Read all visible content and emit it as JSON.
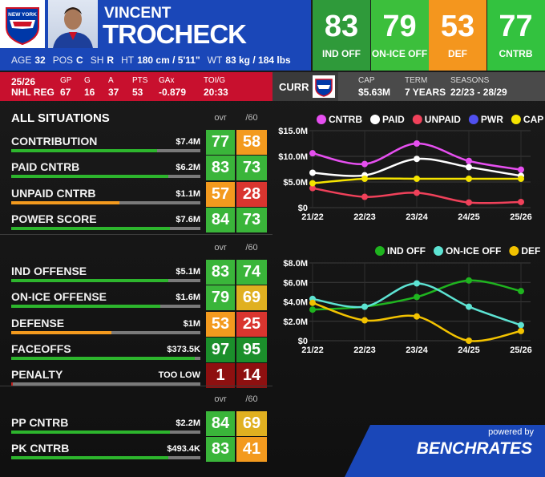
{
  "header": {
    "first_name": "VINCENT",
    "last_name": "TROCHECK",
    "team_logo_text": "NEW YORK",
    "bio": [
      {
        "label": "AGE",
        "value": "32"
      },
      {
        "label": "POS",
        "value": "C"
      },
      {
        "label": "SH",
        "value": "R"
      },
      {
        "label": "HT",
        "value": "180 cm / 5'11\""
      },
      {
        "label": "WT",
        "value": "83 kg / 184 lbs"
      }
    ],
    "ratings": [
      {
        "value": 83,
        "label": "IND OFF",
        "color": "#2f9a3a"
      },
      {
        "value": 79,
        "label": "ON-ICE OFF",
        "color": "#3cbf3c"
      },
      {
        "value": 53,
        "label": "DEF",
        "color": "#f4961e"
      },
      {
        "value": 77,
        "label": "CNTRB",
        "color": "#33c23f"
      }
    ]
  },
  "season": {
    "season": "25/26",
    "league": "NHL REG",
    "stats": [
      {
        "label": "GP",
        "value": "67"
      },
      {
        "label": "G",
        "value": "16"
      },
      {
        "label": "A",
        "value": "37"
      },
      {
        "label": "PTS",
        "value": "53"
      },
      {
        "label": "GAx",
        "value": "-0.879"
      },
      {
        "label": "TOI/G",
        "value": "20:33"
      }
    ]
  },
  "contract": {
    "title": "CURR",
    "items": [
      {
        "label": "CAP",
        "value": "$5.63M"
      },
      {
        "label": "TERM",
        "value": "7 YEARS"
      },
      {
        "label": "SEASONS",
        "value": "22/23 - 28/29"
      }
    ]
  },
  "sections": [
    {
      "title": "ALL SITUATIONS",
      "columns": [
        "ovr",
        "/60"
      ],
      "rows": [
        {
          "label": "CONTRIBUTION",
          "amount": "$7.4M",
          "ovr": 77,
          "per60": 58
        },
        {
          "label": "PAID CNTRB",
          "amount": "$6.2M",
          "ovr": 83,
          "per60": 73
        },
        {
          "label": "UNPAID CNTRB",
          "amount": "$1.1M",
          "ovr": 57,
          "per60": 28
        },
        {
          "label": "POWER SCORE",
          "amount": "$7.6M",
          "ovr": 84,
          "per60": 73
        }
      ]
    },
    {
      "columns": [
        "ovr",
        "/60"
      ],
      "rows": [
        {
          "label": "IND OFFENSE",
          "amount": "$5.1M",
          "ovr": 83,
          "per60": 74
        },
        {
          "label": "ON-ICE OFFENSE",
          "amount": "$1.6M",
          "ovr": 79,
          "per60": 69
        },
        {
          "label": "DEFENSE",
          "amount": "$1M",
          "ovr": 53,
          "per60": 25
        },
        {
          "label": "FACEOFFS",
          "amount": "$373.5K",
          "ovr": 97,
          "per60": 95
        },
        {
          "label": "PENALTY",
          "amount": "TOO LOW",
          "ovr": 1,
          "per60": 14
        }
      ]
    },
    {
      "columns": [
        "ovr",
        "/60"
      ],
      "rows": [
        {
          "label": "PP CNTRB",
          "amount": "$2.2M",
          "ovr": 84,
          "per60": 69
        },
        {
          "label": "PK CNTRB",
          "amount": "$493.4K",
          "ovr": 83,
          "per60": 41
        }
      ]
    }
  ],
  "charts": [
    {
      "type": "line",
      "categories": [
        "21/22",
        "22/23",
        "23/24",
        "24/25",
        "25/26"
      ],
      "ylim": [
        0,
        15
      ],
      "yticks": [
        {
          "value": 0,
          "label": "$0"
        },
        {
          "value": 5,
          "label": "$5.0M"
        },
        {
          "value": 10,
          "label": "$10.0M"
        },
        {
          "value": 15,
          "label": "$15.0M"
        }
      ],
      "series": [
        {
          "name": "CNTRB",
          "color": "#e64ff0",
          "values": [
            10.6,
            8.5,
            12.5,
            9.1,
            7.4
          ]
        },
        {
          "name": "PAID",
          "color": "#ffffff",
          "values": [
            6.8,
            6.3,
            9.5,
            7.9,
            6.2
          ]
        },
        {
          "name": "UNPAID",
          "color": "#f0415a",
          "values": [
            3.8,
            2.1,
            2.9,
            1.0,
            1.1
          ]
        },
        {
          "name": "PWR",
          "color": "#5050f0",
          "values": [
            null,
            null,
            null,
            null,
            null
          ]
        },
        {
          "name": "CAP",
          "color": "#f5e400",
          "values": [
            4.75,
            5.63,
            5.63,
            5.63,
            5.63
          ]
        }
      ]
    },
    {
      "type": "line",
      "categories": [
        "21/22",
        "22/23",
        "23/24",
        "24/25",
        "25/26"
      ],
      "ylim": [
        0,
        8
      ],
      "yticks": [
        {
          "value": 0,
          "label": "$0"
        },
        {
          "value": 2,
          "label": "$2.0M"
        },
        {
          "value": 4,
          "label": "$4.0M"
        },
        {
          "value": 6,
          "label": "$6.0M"
        },
        {
          "value": 8,
          "label": "$8.0M"
        }
      ],
      "series": [
        {
          "name": "IND OFF",
          "color": "#1fb41f",
          "values": [
            3.2,
            3.5,
            4.5,
            6.2,
            5.1
          ]
        },
        {
          "name": "ON-ICE OFF",
          "color": "#5de3d3",
          "values": [
            4.3,
            3.5,
            5.9,
            3.5,
            1.6
          ]
        },
        {
          "name": "DEF",
          "color": "#f2c200",
          "values": [
            3.9,
            2.1,
            2.5,
            0,
            1.0
          ]
        }
      ]
    }
  ],
  "footer": {
    "powered_by": "powered by",
    "brand": "BENCHRATES"
  }
}
